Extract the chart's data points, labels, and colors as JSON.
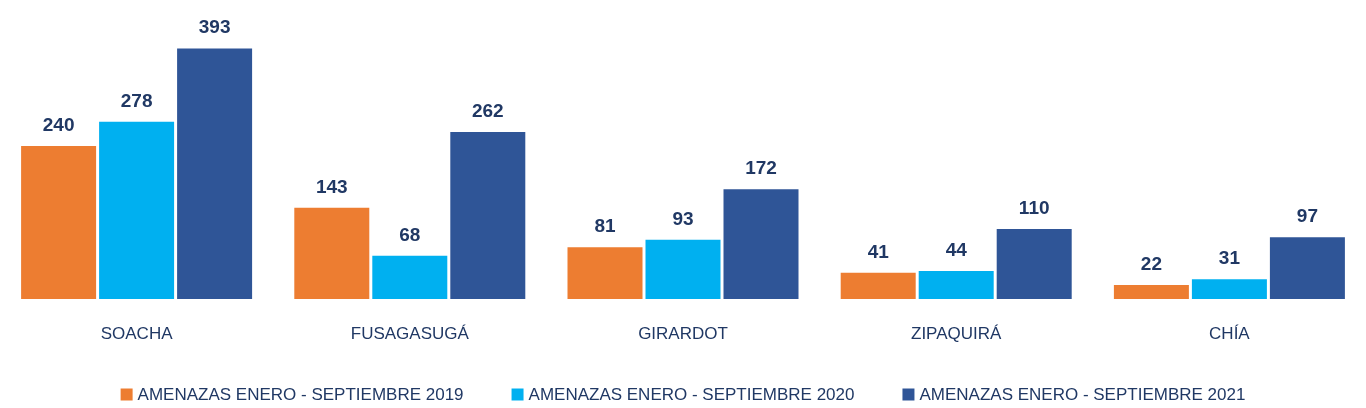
{
  "chart_data": {
    "type": "bar",
    "categories": [
      "SOACHA",
      "FUSAGASUGÁ",
      "GIRARDOT",
      "ZIPAQUIRÁ",
      "CHÍA"
    ],
    "series": [
      {
        "name": "AMENAZAS ENERO - SEPTIEMBRE 2019",
        "color": "#ed7d31",
        "values": [
          240,
          143,
          81,
          41,
          22
        ]
      },
      {
        "name": "AMENAZAS ENERO - SEPTIEMBRE 2020",
        "color": "#00b0f0",
        "values": [
          278,
          68,
          93,
          44,
          31
        ]
      },
      {
        "name": "AMENAZAS ENERO - SEPTIEMBRE 2021",
        "color": "#2f5597",
        "values": [
          393,
          262,
          172,
          110,
          97
        ]
      }
    ],
    "data_labels": true,
    "legend": "bottom",
    "grid": false,
    "tick_labels": "x"
  }
}
